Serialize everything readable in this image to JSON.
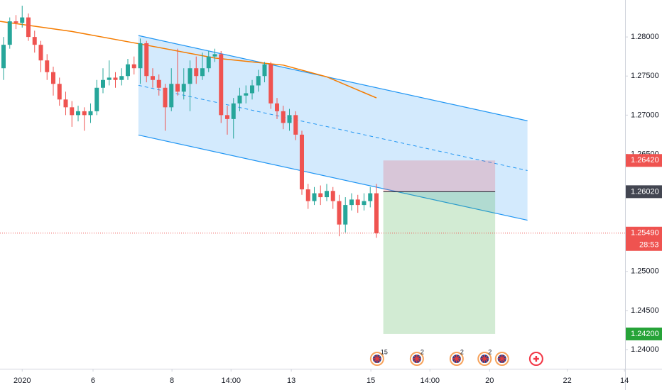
{
  "chart_data": {
    "type": "candlestick",
    "open": [
      1.276,
      1.279,
      1.282,
      1.2818,
      1.2825,
      1.28,
      1.279,
      1.277,
      1.2755,
      1.274,
      1.272,
      1.271,
      1.27,
      1.2705,
      1.27,
      1.2705,
      1.2735,
      1.2745,
      1.2748,
      1.2745,
      1.275,
      1.2765,
      1.276,
      1.2792,
      1.275,
      1.2745,
      1.2735,
      1.271,
      1.274,
      1.273,
      1.274,
      1.276,
      1.275,
      1.276,
      1.2775,
      1.2778,
      1.27,
      1.2695,
      1.2715,
      1.2725,
      1.2728,
      1.2738,
      1.275,
      1.2765,
      1.2715,
      1.2705,
      1.269,
      1.27,
      1.2675,
      1.2605,
      1.259,
      1.26,
      1.2595,
      1.2603,
      1.259,
      1.256,
      1.2585,
      1.2592,
      1.2585,
      1.259,
      1.26
    ],
    "high": [
      1.28,
      1.2825,
      1.2828,
      1.284,
      1.283,
      1.2808,
      1.2795,
      1.2778,
      1.2762,
      1.2748,
      1.273,
      1.2718,
      1.2712,
      1.271,
      1.2715,
      1.2745,
      1.276,
      1.277,
      1.2755,
      1.276,
      1.2772,
      1.2775,
      1.2798,
      1.2795,
      1.276,
      1.2752,
      1.274,
      1.276,
      1.2785,
      1.276,
      1.277,
      1.2775,
      1.278,
      1.2782,
      1.2785,
      1.2782,
      1.2712,
      1.2722,
      1.2735,
      1.2738,
      1.2745,
      1.2758,
      1.2768,
      1.2768,
      1.2722,
      1.2712,
      1.2708,
      1.2705,
      1.268,
      1.2612,
      1.2608,
      1.261,
      1.2612,
      1.2608,
      1.2598,
      1.2595,
      1.26,
      1.2598,
      1.26,
      1.2608,
      1.2612
    ],
    "low": [
      1.2745,
      1.2785,
      1.281,
      1.2812,
      1.2795,
      1.278,
      1.2755,
      1.2745,
      1.2725,
      1.2712,
      1.27,
      1.2685,
      1.2692,
      1.268,
      1.269,
      1.27,
      1.2728,
      1.2738,
      1.2735,
      1.2738,
      1.2745,
      1.2752,
      1.274,
      1.2742,
      1.2735,
      1.2725,
      1.268,
      1.2705,
      1.2725,
      1.272,
      1.2705,
      1.274,
      1.2745,
      1.2755,
      1.2768,
      1.269,
      1.2675,
      1.267,
      1.2705,
      1.2715,
      1.272,
      1.273,
      1.2742,
      1.2708,
      1.2695,
      1.2682,
      1.268,
      1.2668,
      1.2598,
      1.258,
      1.2585,
      1.2585,
      1.259,
      1.258,
      1.2545,
      1.255,
      1.2578,
      1.2575,
      1.2578,
      1.2582,
      1.2543
    ],
    "close": [
      1.279,
      1.282,
      1.2818,
      1.2825,
      1.28,
      1.279,
      1.277,
      1.2755,
      1.274,
      1.272,
      1.271,
      1.27,
      1.2705,
      1.27,
      1.2705,
      1.2735,
      1.2745,
      1.2748,
      1.2745,
      1.275,
      1.2765,
      1.276,
      1.2792,
      1.275,
      1.2745,
      1.2735,
      1.271,
      1.274,
      1.273,
      1.274,
      1.276,
      1.275,
      1.276,
      1.2775,
      1.2778,
      1.27,
      1.2695,
      1.2715,
      1.2725,
      1.2728,
      1.2738,
      1.275,
      1.2765,
      1.2715,
      1.2705,
      1.269,
      1.27,
      1.2675,
      1.2605,
      1.259,
      1.26,
      1.2595,
      1.2603,
      1.259,
      1.256,
      1.2585,
      1.2592,
      1.2585,
      1.259,
      1.26,
      1.2549
    ],
    "up_color": "#26a69a",
    "down_color": "#ef5350",
    "xlim": [
      -0.57,
      100
    ],
    "ylim": [
      1.23755,
      1.28473
    ],
    "xticks": [
      {
        "value": 3,
        "label": "2020"
      },
      {
        "value": 14.4,
        "label": "6"
      },
      {
        "value": 27.1,
        "label": "8"
      },
      {
        "value": 36.6,
        "label": "14:00"
      },
      {
        "value": 46.3,
        "label": "13"
      },
      {
        "value": 59.1,
        "label": "15"
      },
      {
        "value": 68.6,
        "label": "14:00"
      },
      {
        "value": 78.2,
        "label": "20"
      },
      {
        "value": 90.7,
        "label": "22"
      },
      {
        "value": 99.9,
        "label": "14"
      }
    ],
    "yticks": [
      {
        "value": 1.24,
        "label": "1.24000"
      },
      {
        "value": 1.245,
        "label": "1.24500"
      },
      {
        "value": 1.25,
        "label": "1.25000"
      },
      {
        "value": 1.255,
        "label": "1.25500"
      },
      {
        "value": 1.26,
        "label": "1.26000"
      },
      {
        "value": 1.265,
        "label": "1.26500"
      },
      {
        "value": 1.27,
        "label": "1.27000"
      },
      {
        "value": 1.275,
        "label": "1.27500"
      },
      {
        "value": 1.28,
        "label": "1.28000"
      }
    ],
    "grid": false,
    "moving_average": {
      "x": [
        -0.57,
        11,
        22,
        34,
        45,
        52,
        60
      ],
      "values": [
        1.282,
        1.2807,
        1.2791,
        1.2773,
        1.2764,
        1.2749,
        1.2722
      ],
      "color": "#f57c00"
    },
    "channel": {
      "x": [
        21.7,
        84.3
      ],
      "upper": [
        1.28018,
        1.26927
      ],
      "lower": [
        1.26745,
        1.25655
      ],
      "color": "#2196f3"
    },
    "position": {
      "x": [
        61.1,
        79.1
      ],
      "entry": 1.2602,
      "stop": 1.2642,
      "target": 1.242
    },
    "last_price": {
      "value": 1.2549,
      "label": "1.25490",
      "countdown": "28:53",
      "color": "#ef5350"
    },
    "price_labels": [
      {
        "value": 1.2642,
        "label": "1.26420",
        "color": "#ef5350"
      },
      {
        "value": 1.2602,
        "label": "1.26020",
        "color": "#434651"
      },
      {
        "value": 1.242,
        "label": "1.24200",
        "color": "#26a338"
      }
    ],
    "events": [
      {
        "x": 60.1,
        "count": "15"
      },
      {
        "x": 66.5,
        "count": "2"
      },
      {
        "x": 72.9,
        "count": "2"
      },
      {
        "x": 77.4,
        "count": "2"
      },
      {
        "x": 80.2
      },
      {
        "x": 85.7,
        "color": "#f23645"
      }
    ]
  }
}
